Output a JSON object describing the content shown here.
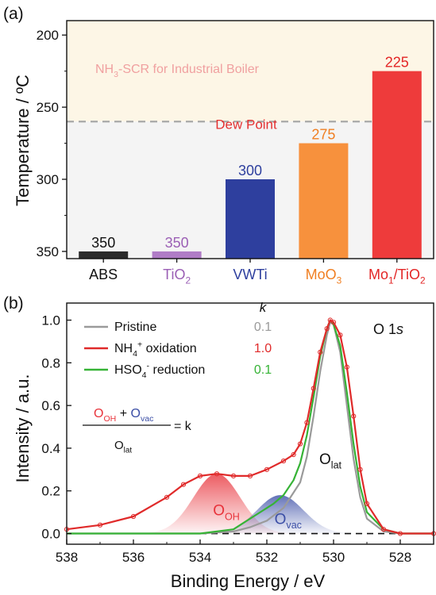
{
  "chart_data": [
    {
      "panel": "(a)",
      "type": "bar",
      "ylabel": "Temperature / ºC",
      "ylim": [
        355,
        190
      ],
      "y_inverted": true,
      "yticks": [
        200,
        250,
        300,
        350
      ],
      "grid": false,
      "bars": [
        {
          "label": "ABS",
          "value": 350,
          "value_label": "350",
          "color": "#2b2b2b",
          "label_color": "#111111"
        },
        {
          "label_parts": [
            {
              "t": "TiO",
              "s": "n"
            },
            {
              "t": "2",
              "s": "sub"
            }
          ],
          "value": 350,
          "value_label": "350",
          "color": "#b07cc6",
          "label_color": "#9b5fb5"
        },
        {
          "label": "VWTi",
          "value": 300,
          "value_label": "300",
          "color": "#2e3f9e",
          "label_color": "#2e3f9e"
        },
        {
          "label_parts": [
            {
              "t": "MoO",
              "s": "n"
            },
            {
              "t": "3",
              "s": "sub"
            }
          ],
          "value": 275,
          "value_label": "275",
          "color": "#f7913d",
          "label_color": "#f07f22"
        },
        {
          "label_parts": [
            {
              "t": "Mo",
              "s": "n"
            },
            {
              "t": "1",
              "s": "sub"
            },
            {
              "t": "/TiO",
              "s": "n"
            },
            {
              "t": "2",
              "s": "sub"
            }
          ],
          "value": 225,
          "value_label": "225",
          "color": "#ee3b3b",
          "label_color": "#e32626"
        }
      ],
      "annotations": {
        "region_label_parts": [
          {
            "t": "NH",
            "s": "n"
          },
          {
            "t": "3",
            "s": "sub"
          },
          {
            "t": "-SCR for Industrial Boiler",
            "s": "n"
          }
        ],
        "region_range": [
          190,
          260
        ],
        "region_color": "#fdf6e6",
        "lower_region_color": "#f4f4f4",
        "dew_point_label": "Dew Point",
        "dew_point_value": 260,
        "dew_point_color": "#e53131"
      }
    },
    {
      "panel": "(b)",
      "type": "line",
      "xlabel": "Binding Energy / eV",
      "ylabel": "Intensity / a.u.",
      "xlim": [
        538,
        527
      ],
      "ylim": [
        -0.05,
        1.08
      ],
      "xticks": [
        538,
        536,
        534,
        532,
        530,
        528
      ],
      "yticks": [
        0.0,
        0.2,
        0.4,
        0.6,
        0.8,
        1.0
      ],
      "corner_label_parts": [
        {
          "t": "O 1",
          "s": "n"
        },
        {
          "t": "s",
          "s": "it"
        }
      ],
      "k_header": "k",
      "series": [
        {
          "name_parts": [
            {
              "t": "Pristine",
              "s": "n"
            }
          ],
          "k": "0.1",
          "color": "#9a9a9a",
          "k_color": "#9a9a9a",
          "x": [
            538,
            536,
            534,
            533,
            532.5,
            532,
            531.5,
            531,
            530.8,
            530.6,
            530.4,
            530.2,
            530.1,
            530,
            529.8,
            529.6,
            529.4,
            529.2,
            529,
            528.5,
            528,
            527
          ],
          "y": [
            0.0,
            0.0,
            0.0,
            0.01,
            0.03,
            0.06,
            0.12,
            0.24,
            0.36,
            0.55,
            0.76,
            0.93,
            0.99,
            0.98,
            0.85,
            0.6,
            0.35,
            0.17,
            0.07,
            0.01,
            0.0,
            0.0
          ]
        },
        {
          "name_parts": [
            {
              "t": "NH",
              "s": "n"
            },
            {
              "t": "4",
              "s": "sub"
            },
            {
              "t": "+",
              "s": "sup"
            },
            {
              "t": " oxidation",
              "s": "n"
            }
          ],
          "k": "1.0",
          "color": "#e02a2a",
          "k_color": "#e02a2a",
          "x": [
            538,
            537,
            536,
            535,
            534.5,
            534,
            533.5,
            533,
            532.5,
            532,
            531.5,
            531.2,
            531,
            530.8,
            530.6,
            530.4,
            530.2,
            530.1,
            530,
            529.8,
            529.6,
            529.4,
            529.2,
            529,
            528.5,
            528,
            527
          ],
          "y": [
            0.02,
            0.04,
            0.08,
            0.17,
            0.23,
            0.27,
            0.28,
            0.27,
            0.27,
            0.3,
            0.34,
            0.37,
            0.42,
            0.52,
            0.68,
            0.85,
            0.96,
            1.0,
            0.99,
            0.93,
            0.78,
            0.55,
            0.3,
            0.14,
            0.02,
            0.0,
            0.0
          ]
        },
        {
          "name_parts": [
            {
              "t": "HSO",
              "s": "n"
            },
            {
              "t": "4",
              "s": "sub"
            },
            {
              "t": "-",
              "s": "sup"
            },
            {
              "t": " reduction",
              "s": "n"
            }
          ],
          "k": "0.1",
          "color": "#36b336",
          "k_color": "#36b336",
          "x": [
            538,
            536,
            534,
            533,
            532.7,
            532.4,
            532.1,
            531.8,
            531.5,
            531.2,
            531,
            530.8,
            530.6,
            530.4,
            530.2,
            530.1,
            530,
            529.8,
            529.6,
            529.4,
            529.2,
            529,
            528.5,
            528,
            527
          ],
          "y": [
            0.0,
            0.0,
            0.0,
            0.02,
            0.05,
            0.08,
            0.11,
            0.14,
            0.18,
            0.25,
            0.33,
            0.46,
            0.64,
            0.83,
            0.96,
            1.0,
            0.98,
            0.88,
            0.66,
            0.42,
            0.22,
            0.1,
            0.02,
            0.0,
            0.0
          ]
        }
      ],
      "fitted_peaks": [
        {
          "label_parts": [
            {
              "t": "O",
              "s": "n"
            },
            {
              "t": "OH",
              "s": "sub"
            }
          ],
          "center": 533.5,
          "height": 0.28,
          "color": "#e8333b",
          "label_color": "#e8333b"
        },
        {
          "label_parts": [
            {
              "t": "O",
              "s": "n"
            },
            {
              "t": "vac",
              "s": "sub"
            }
          ],
          "center": 531.6,
          "height": 0.18,
          "color": "#3b4ea6",
          "label_color": "#3b4ea6"
        }
      ],
      "lattice_label_parts": [
        {
          "t": "O",
          "s": "n"
        },
        {
          "t": "lat",
          "s": "sub"
        }
      ],
      "formula": {
        "numerator": [
          [
            {
              "t": "O",
              "s": "n",
              "c": "#e8333b"
            },
            {
              "t": "OH",
              "s": "sub",
              "c": "#e8333b"
            }
          ],
          [
            {
              "t": " + ",
              "s": "n",
              "c": "#111111"
            }
          ],
          [
            {
              "t": "O",
              "s": "n",
              "c": "#3b4ea6"
            },
            {
              "t": "vac",
              "s": "sub",
              "c": "#3b4ea6"
            }
          ]
        ],
        "denominator": [
          {
            "t": "O",
            "s": "n",
            "c": "#111111"
          },
          {
            "t": "lat",
            "s": "sub",
            "c": "#111111"
          }
        ],
        "equals": "= k"
      },
      "baseline_value": 0.0
    }
  ]
}
